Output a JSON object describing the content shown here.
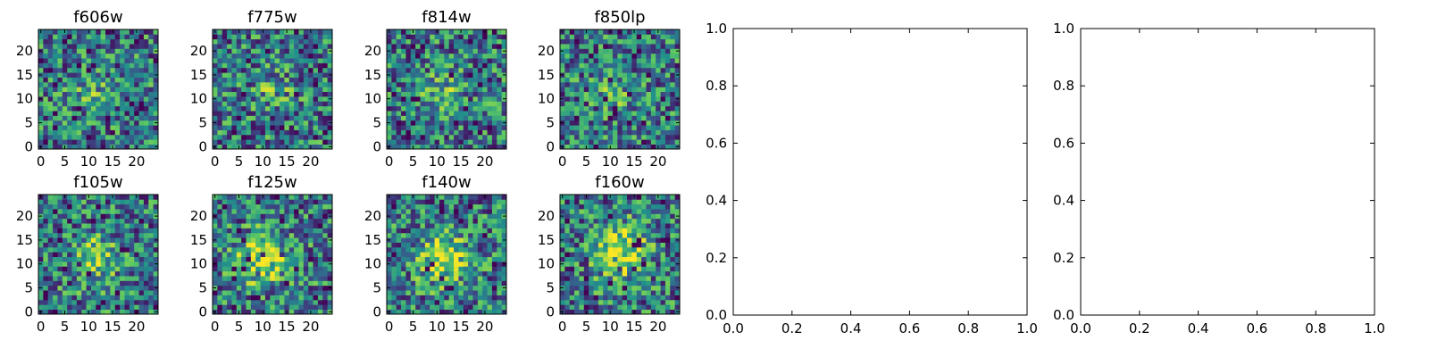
{
  "chart_data": [
    {
      "type": "heatmap",
      "title": "f606w",
      "grid_size": 25,
      "xlim": [
        0,
        24
      ],
      "ylim": [
        0,
        24
      ],
      "xticks": [
        0,
        5,
        10,
        15,
        20
      ],
      "yticks": [
        0,
        5,
        10,
        15,
        20
      ],
      "peak": [
        11,
        11
      ],
      "blob_strength": 0.18,
      "blob_width": 3.0,
      "seed": 11,
      "colormap": "viridis"
    },
    {
      "type": "heatmap",
      "title": "f775w",
      "grid_size": 25,
      "xlim": [
        0,
        24
      ],
      "ylim": [
        0,
        24
      ],
      "xticks": [
        0,
        5,
        10,
        15,
        20
      ],
      "yticks": [
        0,
        5,
        10,
        15,
        20
      ],
      "peak": [
        12,
        12
      ],
      "blob_strength": 0.18,
      "blob_width": 3.0,
      "seed": 22,
      "colormap": "viridis"
    },
    {
      "type": "heatmap",
      "title": "f814w",
      "grid_size": 25,
      "xlim": [
        0,
        24
      ],
      "ylim": [
        0,
        24
      ],
      "xticks": [
        0,
        5,
        10,
        15,
        20
      ],
      "yticks": [
        0,
        5,
        10,
        15,
        20
      ],
      "peak": [
        11,
        12
      ],
      "blob_strength": 0.22,
      "blob_width": 3.0,
      "seed": 33,
      "colormap": "viridis"
    },
    {
      "type": "heatmap",
      "title": "f850lp",
      "grid_size": 25,
      "xlim": [
        0,
        24
      ],
      "ylim": [
        0,
        24
      ],
      "xticks": [
        0,
        5,
        10,
        15,
        20
      ],
      "yticks": [
        0,
        5,
        10,
        15,
        20
      ],
      "peak": [
        11,
        12
      ],
      "blob_strength": 0.2,
      "blob_width": 3.0,
      "seed": 44,
      "colormap": "viridis"
    },
    {
      "type": "heatmap",
      "title": "f105w",
      "grid_size": 25,
      "xlim": [
        0,
        24
      ],
      "ylim": [
        0,
        24
      ],
      "xticks": [
        0,
        5,
        10,
        15,
        20
      ],
      "yticks": [
        0,
        5,
        10,
        15,
        20
      ],
      "peak": [
        11,
        11
      ],
      "blob_strength": 0.38,
      "blob_width": 3.4,
      "seed": 55,
      "colormap": "viridis"
    },
    {
      "type": "heatmap",
      "title": "f125w",
      "grid_size": 25,
      "xlim": [
        0,
        24
      ],
      "ylim": [
        0,
        24
      ],
      "xticks": [
        0,
        5,
        10,
        15,
        20
      ],
      "yticks": [
        0,
        5,
        10,
        15,
        20
      ],
      "peak": [
        10,
        11
      ],
      "blob_strength": 0.42,
      "blob_width": 3.8,
      "seed": 66,
      "colormap": "viridis"
    },
    {
      "type": "heatmap",
      "title": "f140w",
      "grid_size": 25,
      "xlim": [
        0,
        24
      ],
      "ylim": [
        0,
        24
      ],
      "xticks": [
        0,
        5,
        10,
        15,
        20
      ],
      "yticks": [
        0,
        5,
        10,
        15,
        20
      ],
      "peak": [
        11,
        11
      ],
      "blob_strength": 0.42,
      "blob_width": 3.8,
      "seed": 77,
      "colormap": "viridis"
    },
    {
      "type": "heatmap",
      "title": "f160w",
      "grid_size": 25,
      "xlim": [
        0,
        24
      ],
      "ylim": [
        0,
        24
      ],
      "xticks": [
        0,
        5,
        10,
        15,
        20
      ],
      "yticks": [
        0,
        5,
        10,
        15,
        20
      ],
      "peak": [
        12,
        13
      ],
      "blob_strength": 0.52,
      "blob_width": 3.8,
      "seed": 88,
      "colormap": "viridis"
    },
    {
      "type": "empty",
      "title": "",
      "xlim": [
        0.0,
        1.0
      ],
      "ylim": [
        0.0,
        1.0
      ],
      "xticks": [
        0.0,
        0.2,
        0.4,
        0.6,
        0.8,
        1.0
      ],
      "yticks": [
        0.0,
        0.2,
        0.4,
        0.6,
        0.8,
        1.0
      ],
      "tick_labels": [
        "0.0",
        "0.2",
        "0.4",
        "0.6",
        "0.8",
        "1.0"
      ]
    },
    {
      "type": "empty",
      "title": "",
      "xlim": [
        0.0,
        1.0
      ],
      "ylim": [
        0.0,
        1.0
      ],
      "xticks": [
        0.0,
        0.2,
        0.4,
        0.6,
        0.8,
        1.0
      ],
      "yticks": [
        0.0,
        0.2,
        0.4,
        0.6,
        0.8,
        1.0
      ],
      "tick_labels": [
        "0.0",
        "0.2",
        "0.4",
        "0.6",
        "0.8",
        "1.0"
      ]
    }
  ],
  "colors": {
    "viridis": [
      "#440154",
      "#3b528b",
      "#21918c",
      "#5ec962",
      "#fde725"
    ],
    "axis": "#000000",
    "background": "#ffffff"
  }
}
